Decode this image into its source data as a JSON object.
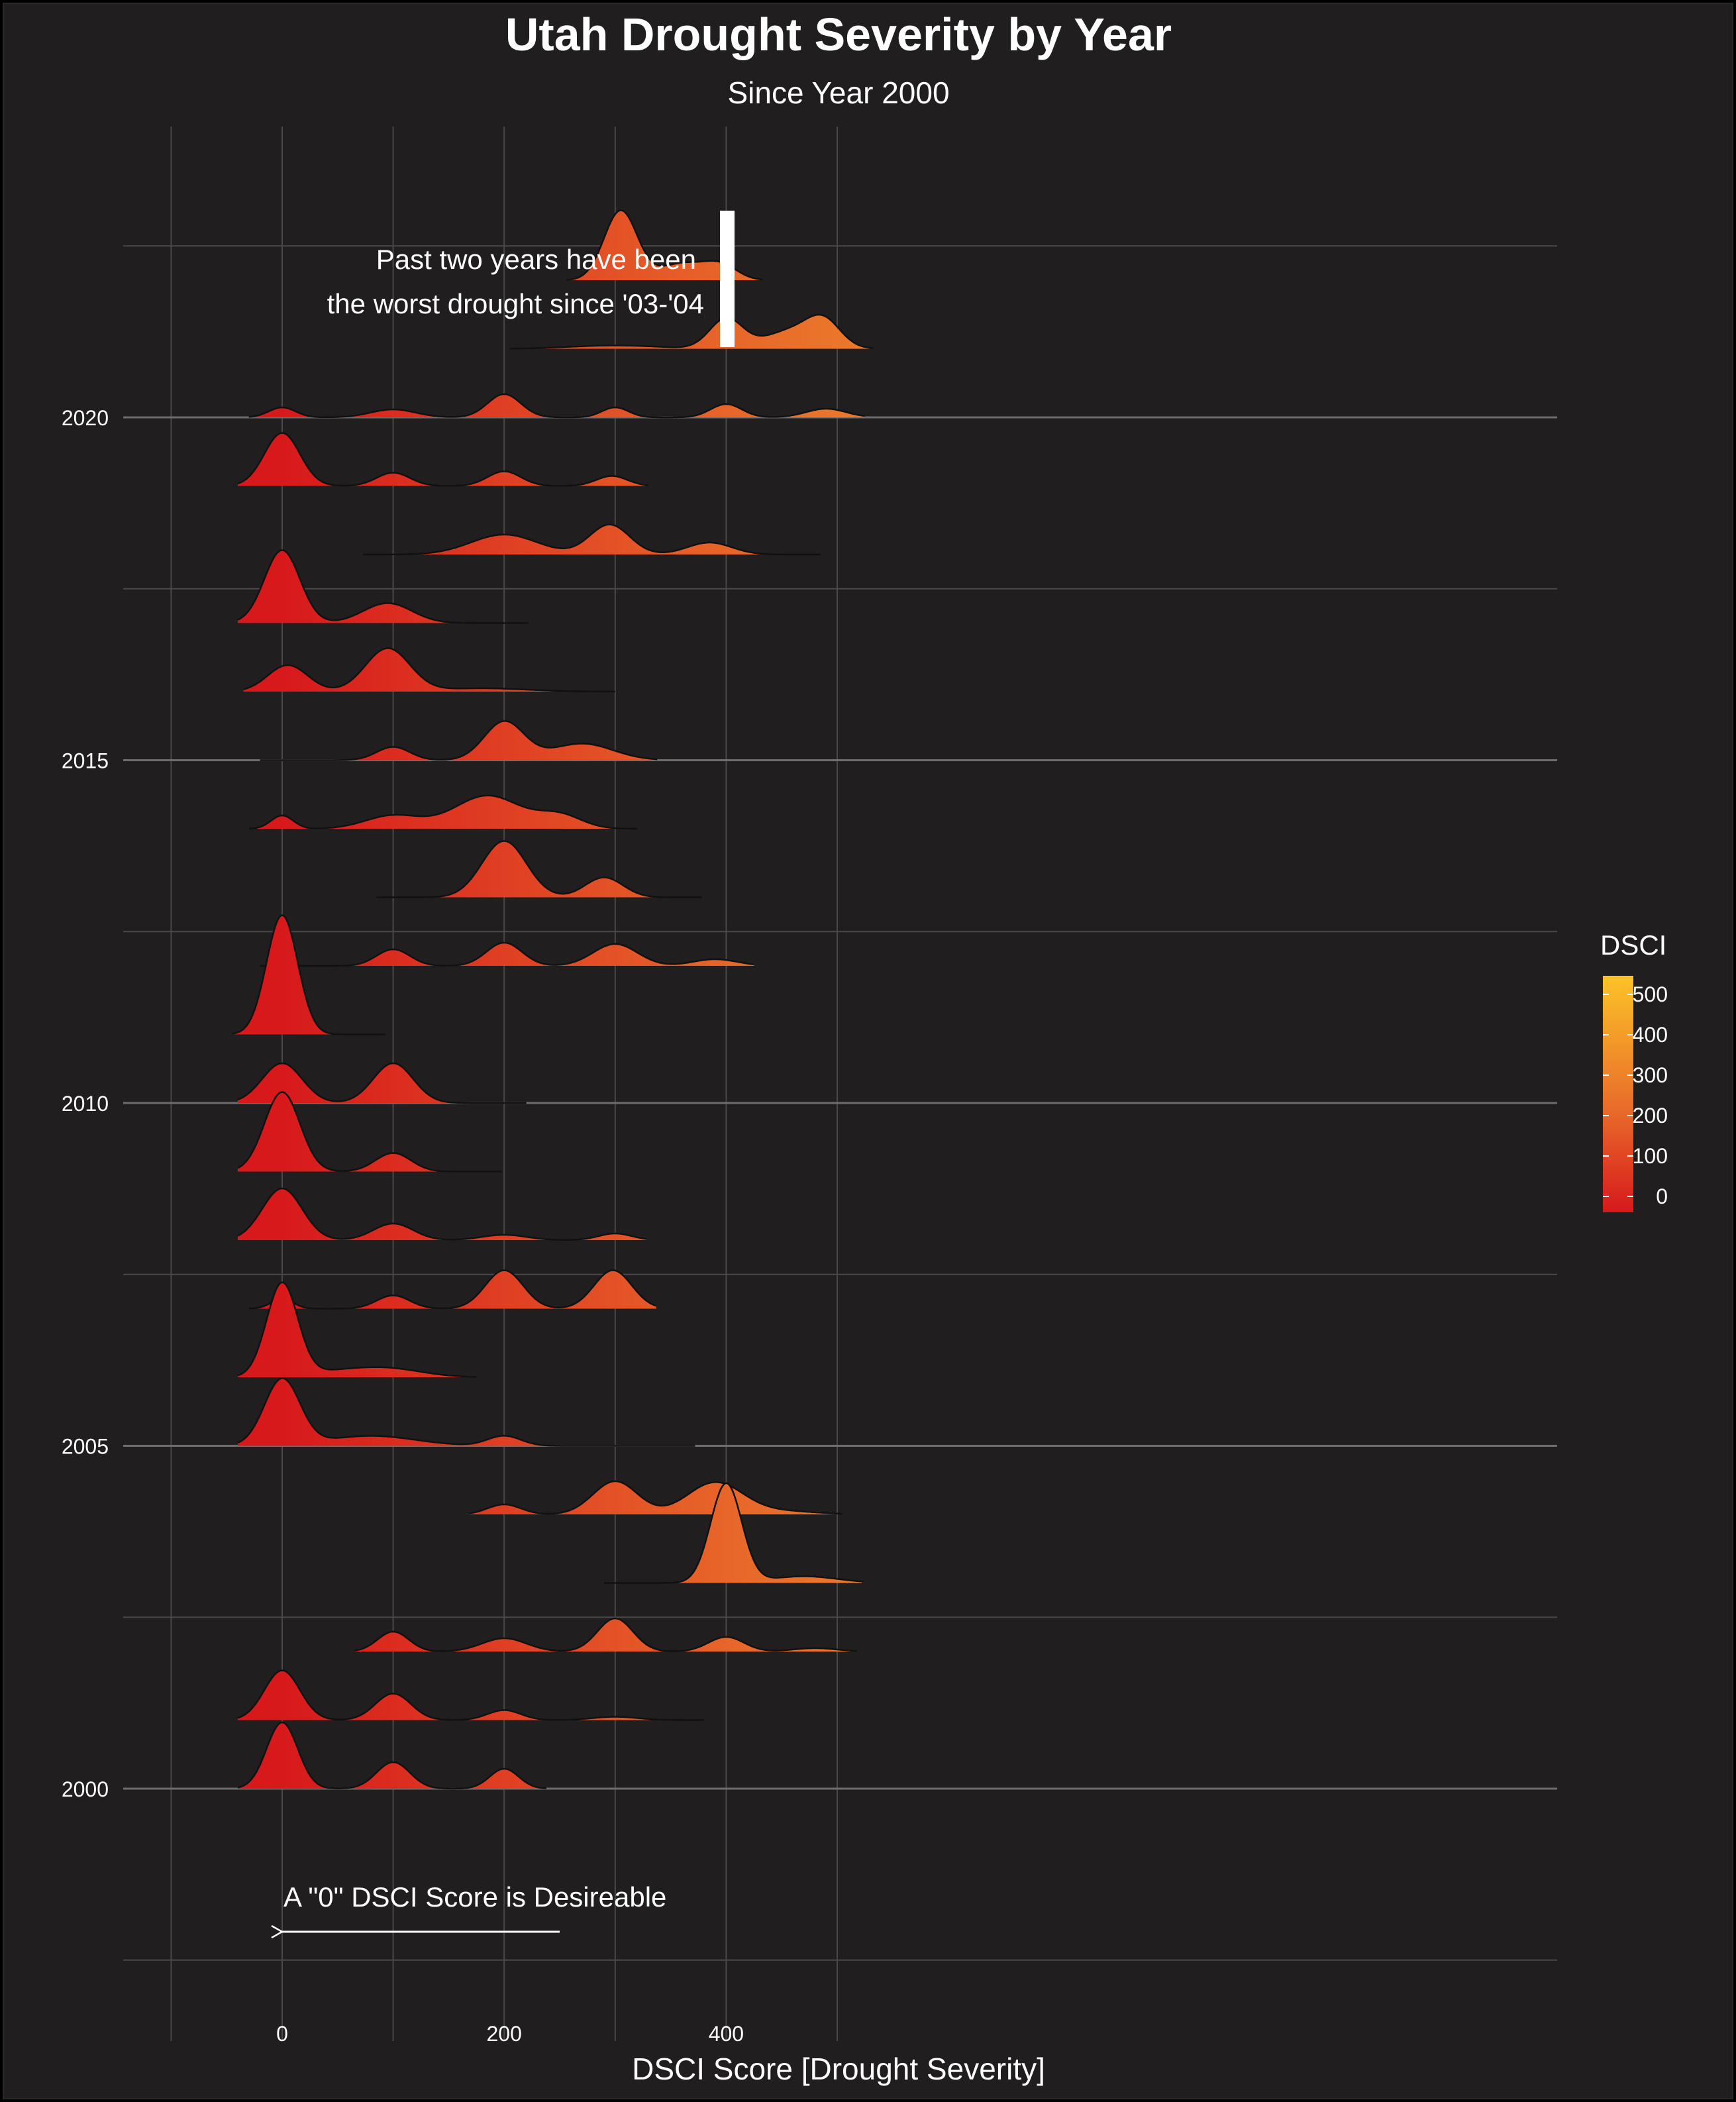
{
  "chart_data": {
    "type": "ridgeline",
    "title": "Utah Drought Severity by Year",
    "subtitle": "Since Year 2000",
    "xlabel": "DSCI Score [Drought Severity]",
    "ylabel": "",
    "x_ticks": [
      0,
      200,
      400
    ],
    "x_range": [
      -70,
      570
    ],
    "y_ticks": [
      2000,
      2005,
      2010,
      2015,
      2020
    ],
    "grid": true,
    "legend": {
      "title": "DSCI",
      "position": "right",
      "ticks": [
        0,
        100,
        200,
        300,
        400,
        500
      ],
      "color_low": "#d7191c",
      "color_mid": "#e8692a",
      "color_high": "#fdc328"
    },
    "annotations": [
      {
        "text_lines": [
          "Past two years have been",
          "the worst drought since '03-'04"
        ]
      },
      {
        "text": "A \"0\" DSCI Score is Desireable",
        "arrow_from_x": 250,
        "arrow_to_x": 0
      }
    ],
    "series": [
      {
        "year": 2000,
        "x_min": -40,
        "x_max": 238,
        "peaks": [
          [
            0,
            1.0,
            14
          ],
          [
            100,
            0.4,
            15
          ],
          [
            200,
            0.3,
            13
          ]
        ]
      },
      {
        "year": 2001,
        "x_min": -40,
        "x_max": 380,
        "peaks": [
          [
            0,
            0.75,
            16
          ],
          [
            100,
            0.4,
            16
          ],
          [
            200,
            0.15,
            15
          ],
          [
            300,
            0.05,
            20
          ]
        ]
      },
      {
        "year": 2002,
        "x_min": 65,
        "x_max": 518,
        "peaks": [
          [
            100,
            0.3,
            14
          ],
          [
            200,
            0.2,
            20
          ],
          [
            300,
            0.5,
            16
          ],
          [
            400,
            0.22,
            16
          ],
          [
            480,
            0.05,
            20
          ]
        ]
      },
      {
        "year": 2003,
        "x_min": 290,
        "x_max": 522,
        "peaks": [
          [
            400,
            1.5,
            14
          ],
          [
            470,
            0.1,
            30
          ]
        ]
      },
      {
        "year": 2004,
        "x_min": 168,
        "x_max": 505,
        "peaks": [
          [
            200,
            0.15,
            15
          ],
          [
            300,
            0.5,
            20
          ],
          [
            390,
            0.48,
            25
          ],
          [
            450,
            0.05,
            30
          ]
        ]
      },
      {
        "year": 2005,
        "x_min": -40,
        "x_max": 372,
        "peaks": [
          [
            0,
            1.0,
            16
          ],
          [
            80,
            0.15,
            40
          ],
          [
            200,
            0.15,
            15
          ]
        ]
      },
      {
        "year": 2006,
        "x_min": -40,
        "x_max": 175,
        "peaks": [
          [
            0,
            1.4,
            14
          ],
          [
            60,
            0.1,
            40
          ],
          [
            100,
            0.08,
            30
          ]
        ]
      },
      {
        "year": 2007,
        "x_min": -30,
        "x_max": 337,
        "peaks": [
          [
            0,
            0.15,
            10
          ],
          [
            100,
            0.2,
            15
          ],
          [
            200,
            0.58,
            17
          ],
          [
            298,
            0.58,
            17
          ]
        ]
      },
      {
        "year": 2008,
        "x_min": -40,
        "x_max": 328,
        "peaks": [
          [
            0,
            0.78,
            18
          ],
          [
            100,
            0.25,
            18
          ],
          [
            200,
            0.08,
            20
          ],
          [
            300,
            0.1,
            15
          ]
        ]
      },
      {
        "year": 2009,
        "x_min": -40,
        "x_max": 198,
        "peaks": [
          [
            0,
            1.2,
            16
          ],
          [
            100,
            0.28,
            16
          ]
        ]
      },
      {
        "year": 2010,
        "x_min": -40,
        "x_max": 220,
        "peaks": [
          [
            0,
            0.6,
            18
          ],
          [
            100,
            0.6,
            18
          ]
        ]
      },
      {
        "year": 2011,
        "x_min": -45,
        "x_max": 93,
        "peaks": [
          [
            0,
            1.8,
            14
          ]
        ]
      },
      {
        "year": 2012,
        "x_min": -20,
        "x_max": 425,
        "peaks": [
          [
            100,
            0.25,
            15
          ],
          [
            200,
            0.35,
            16
          ],
          [
            300,
            0.33,
            20
          ],
          [
            390,
            0.1,
            20
          ]
        ]
      },
      {
        "year": 2013,
        "x_min": 85,
        "x_max": 378,
        "peaks": [
          [
            200,
            0.85,
            20
          ],
          [
            290,
            0.3,
            17
          ]
        ]
      },
      {
        "year": 2014,
        "x_min": -30,
        "x_max": 320,
        "peaks": [
          [
            0,
            0.2,
            10
          ],
          [
            100,
            0.2,
            25
          ],
          [
            185,
            0.5,
            30
          ],
          [
            250,
            0.2,
            20
          ]
        ]
      },
      {
        "year": 2015,
        "x_min": -20,
        "x_max": 338,
        "peaks": [
          [
            100,
            0.2,
            15
          ],
          [
            200,
            0.58,
            18
          ],
          [
            270,
            0.25,
            28
          ]
        ]
      },
      {
        "year": 2016,
        "x_min": -35,
        "x_max": 300,
        "peaks": [
          [
            5,
            0.4,
            18
          ],
          [
            95,
            0.65,
            20
          ],
          [
            180,
            0.05,
            40
          ]
        ]
      },
      {
        "year": 2017,
        "x_min": -40,
        "x_max": 222,
        "peaks": [
          [
            0,
            1.1,
            16
          ],
          [
            95,
            0.3,
            22
          ]
        ]
      },
      {
        "year": 2018,
        "x_min": 73,
        "x_max": 485,
        "peaks": [
          [
            200,
            0.3,
            30
          ],
          [
            295,
            0.45,
            18
          ],
          [
            385,
            0.18,
            20
          ]
        ]
      },
      {
        "year": 2019,
        "x_min": -40,
        "x_max": 330,
        "peaks": [
          [
            0,
            0.8,
            16
          ],
          [
            100,
            0.2,
            15
          ],
          [
            200,
            0.22,
            15
          ],
          [
            297,
            0.15,
            14
          ]
        ]
      },
      {
        "year": 2020,
        "x_min": -30,
        "x_max": 525,
        "peaks": [
          [
            0,
            0.15,
            12
          ],
          [
            100,
            0.12,
            20
          ],
          [
            200,
            0.35,
            15
          ],
          [
            300,
            0.15,
            12
          ],
          [
            400,
            0.2,
            14
          ],
          [
            490,
            0.13,
            18
          ]
        ]
      },
      {
        "year": 2021,
        "x_min": 205,
        "x_max": 532,
        "peaks": [
          [
            300,
            0.05,
            40
          ],
          [
            400,
            0.45,
            15
          ],
          [
            460,
            0.28,
            25
          ],
          [
            488,
            0.35,
            15
          ]
        ]
      },
      {
        "year": 2022,
        "x_min": 256,
        "x_max": 433,
        "peaks": [
          [
            305,
            1.05,
            15
          ],
          [
            360,
            0.25,
            20
          ],
          [
            395,
            0.22,
            15
          ]
        ]
      }
    ]
  }
}
